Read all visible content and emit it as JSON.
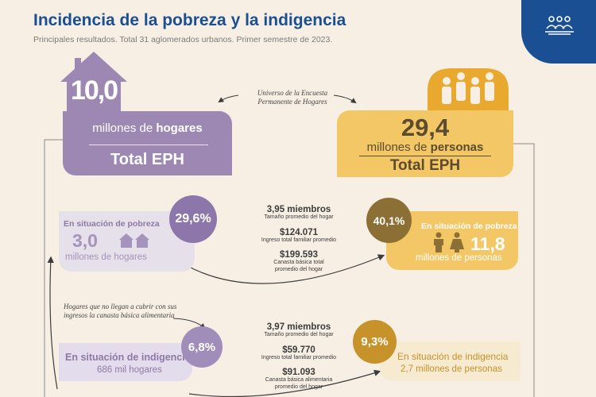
{
  "header": {
    "title": "Incidencia de la pobreza y la indigencia",
    "subtitle": "Principales resultados. Total 31 aglomerados urbanos. Primer semestre de 2023."
  },
  "badge_icon": "people-group-icon",
  "universe_note": "Universo de la Encuesta Permanente de Hogares",
  "hogares_total": {
    "value": "10,0",
    "unit_prefix": "millones de ",
    "unit_bold": "hogares",
    "label": "Total EPH"
  },
  "personas_total": {
    "value": "29,4",
    "unit_prefix": "millones de ",
    "unit_bold": "personas",
    "label": "Total EPH"
  },
  "pobreza_hogares": {
    "title": "En situación de pobreza",
    "percent": "29,6%",
    "value": "3,0",
    "unit": "millones de hogares"
  },
  "pobreza_stats": {
    "members": "3,95 miembros",
    "members_label": "Tamaño promedio del hogar",
    "income": "$124.071",
    "income_label": "Ingreso total familiar promedio",
    "basket": "$199.593",
    "basket_label_1": "Canasta básica total",
    "basket_label_2": "promedio del hogar"
  },
  "pobreza_personas": {
    "title": "En situación de pobreza",
    "percent": "40,1%",
    "value": "11,8",
    "unit": "millones de personas"
  },
  "indigencia_note": "Hogares que no llegan a cubrir con sus ingresos la canasta básica alimentaria",
  "indigencia_hogares": {
    "title": "En situación de indigencia",
    "percent": "6,8%",
    "value": "686 mil hogares"
  },
  "indigencia_stats": {
    "members": "3,97 miembros",
    "members_label": "Tamaño promedio del hogar",
    "income": "$59.770",
    "income_label": "Ingreso total familiar promedio",
    "basket": "$91.093",
    "basket_label_1": "Canasta básica alimentaria",
    "basket_label_2": "promedio del hogar"
  },
  "indigencia_personas": {
    "title": "En situación de indigencia",
    "percent": "9,3%",
    "value": "2,7 millones de personas"
  },
  "colors": {
    "title_blue": "#1a4f94",
    "purple": "#9d88b4",
    "gold": "#f3c766",
    "dark_gold": "#8b6f34",
    "background": "#f7efe4"
  }
}
